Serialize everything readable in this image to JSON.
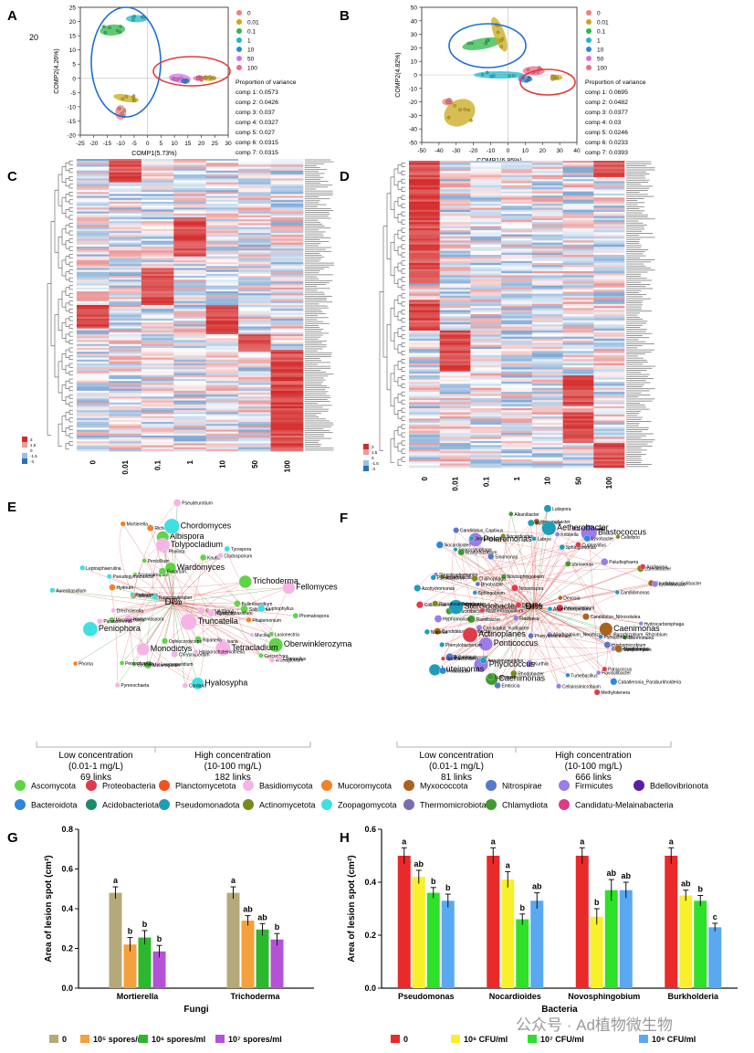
{
  "page_marker": "20",
  "watermark": "公众号 · Ad植物微生物",
  "panel_letters": [
    "A",
    "B",
    "C",
    "D",
    "E",
    "F",
    "G",
    "H"
  ],
  "legend_groups": [
    "0",
    "0.01",
    "0.1",
    "1",
    "10",
    "50",
    "100"
  ],
  "group_colors": [
    "#ef7f7f",
    "#c8a818",
    "#2db84a",
    "#20b7c8",
    "#2e86de",
    "#d872e0",
    "#f06a8a"
  ],
  "pca": [
    {
      "xlabel": "COMP1(5.73%)",
      "ylabel": "COMP2(4.26%)",
      "xticks": [
        "-25",
        "-20",
        "-15",
        "-10",
        "-5",
        "0",
        "5",
        "10",
        "15",
        "20",
        "25",
        "30"
      ],
      "yticks": [
        "-20",
        "-15",
        "-10",
        "-5",
        "0",
        "5",
        "10",
        "15",
        "20",
        "25"
      ],
      "variance_title": "Proportion of variance",
      "variance": [
        "comp 1: 0.0573",
        "comp 2: 0.0426",
        "comp 3: 0.037",
        "comp 4: 0.0327",
        "comp 5: 0.027",
        "comp 6: 0.0315",
        "comp 7: 0.0315"
      ]
    },
    {
      "xlabel": "COMP1(6.95%)",
      "ylabel": "COMP2(4.82%)",
      "xticks": [
        "-50",
        "-40",
        "-30",
        "-20",
        "-10",
        "0",
        "10",
        "20",
        "30",
        "40"
      ],
      "yticks": [
        "-50",
        "-40",
        "-30",
        "-20",
        "-10",
        "0",
        "10",
        "20",
        "30",
        "40",
        "50"
      ],
      "variance_title": "Proportion of variance",
      "variance": [
        "comp 1: 0.0695",
        "comp 2: 0.0482",
        "comp 3: 0.0377",
        "comp 4: 0.03",
        "comp 5: 0.0246",
        "comp 6: 0.0233",
        "comp 7: 0.0393"
      ]
    }
  ],
  "heatmap": {
    "columns": [
      "0",
      "0.01",
      "0.1",
      "1",
      "10",
      "50",
      "100"
    ],
    "scale": [
      "3",
      "1.5",
      "0",
      "-1.5",
      "-3"
    ],
    "color_high": "#d42a2a",
    "color_low": "#2a6fb8"
  },
  "network_E": {
    "taxa": [
      "Bulleribasidium",
      "Hydnum",
      "Saitozyma",
      "Anteaglonium",
      "Cephalotheca",
      "Cercophora",
      "Wardomyces",
      "Truncatella",
      "Peniophora",
      "Mucilago",
      "Cuphophyllus",
      "Lasionectria",
      "Scopulariopsis",
      "Aureobasidium",
      "Ilyonectria",
      "Hyalosypha",
      "Chrysosporium",
      "Leucosporidium",
      "Oberwinklerozyma",
      "Isaria",
      "Melanogaster",
      "Fellomyces",
      "Tetracladium",
      "Pseudeurotium",
      "Podospora",
      "Phialemonium",
      "Monodictys",
      "Sydowia",
      "Ripariella",
      "Tyrospora",
      "Phoma",
      "DI%",
      "Albispora",
      "Richonella",
      "Hanseniaspora",
      "Cordana",
      "Tolypocladium",
      "Trichoderma",
      "Cystofilobasidium",
      "Humicola",
      "Macroventuria",
      "Pholiota",
      "Coprinellus",
      "Fusarium",
      "Pyrenochaeta",
      "Knufia",
      "Cladosporium",
      "Mortierella",
      "Chordomyces",
      "Ophiocordyceps",
      "Paraboeremia",
      "Drechslerella",
      "Halokirschsteiniothelia",
      "Peniophorella",
      "Leptosphaerulina",
      "Ramicandelaber",
      "Penicillium",
      "Phomatospora",
      "Pseudogymnoascus"
    ],
    "low": {
      "title": "Low concentration",
      "range": "(0.01-1 mg/L)",
      "links": "69 links"
    },
    "high": {
      "title": "High concentration",
      "range": "(10-100 mg/L)",
      "links": "182 links"
    }
  },
  "network_F": {
    "taxa": [
      "Pelomicrobium",
      "Methylotenera",
      "Candidatus_Koribacter",
      "Lutispora",
      "Kurthia",
      "Edaphobacter",
      "Candidatus_Pedobacter",
      "Candidimonas",
      "Devosia",
      "Hymenobacter",
      "Candidatus_Nitrosotalea",
      "Tumebacillus",
      "Ornithinibacter",
      "Flavisolibacter",
      "Thermotalea",
      "Phycicoccus",
      "Nitrosospira",
      "Aquimonas",
      "Burkholderia",
      "Caballeronia_Paraburkholderia",
      "Anaerobacillus",
      "Sporocytophaga",
      "Brevundimonas",
      "Streptomyces",
      "Armatimonadetes",
      "Rhodobacter",
      "Collimonas",
      "Candidatus_Solibacter",
      "Allorhizobium_Neorhizobium_Pararhizobium_Rhizobium",
      "Bradyrhizobium",
      "Candidatus_Captivus",
      "Polaromonas",
      "DI%",
      "Phenylobacterium",
      "Caenimonas",
      "Variovorax",
      "Ramlibacter",
      "Cellulosimicrobium",
      "Niabella",
      "Undibacterium",
      "Hydrocarboniphaga",
      "Luteimonas",
      "Ponticoccus",
      "Blastococcus",
      "Perlucidibaca",
      "Novosphingobium",
      "Rubrobacter",
      "Stenotrophomonas",
      "Chitinophaga",
      "Steroidobacter",
      "Paracoccus",
      "Flavitalea",
      "Lysobacter",
      "Azohydromonas",
      "Aetherobacter",
      "Duganella",
      "Sphingomonas",
      "Nocardioides",
      "Jeotgalibacillus",
      "Noviherbaspirillum",
      "Actinoplanes",
      "Pseudoxanthomonas",
      "Lysinibacillus",
      "Bryobacter",
      "Pedobacter",
      "Emticicia",
      "Hyphomicrobium",
      "Caenimonas",
      "Lutimonas",
      "Cupriavidus",
      "Anaerobiospirillum",
      "Luteolibacter",
      "Alkanibacter",
      "Pseudomonas",
      "Labrys",
      "Paludisphaera",
      "Hyphomonas",
      "Phenylobacterium",
      "Kribbella",
      "Cellvibrio",
      "Sphingobium",
      "Algoriphagus",
      "Nocardioides",
      "Pseudolabrys",
      "Acidisoma",
      "Sinomonas"
    ],
    "low": {
      "title": "Low concentration",
      "range": "(0.01-1 mg/L)",
      "links": "81 links"
    },
    "high": {
      "title": "High concentration",
      "range": "(10-100 mg/L)",
      "links": "666 links"
    }
  },
  "phyla_legend": [
    {
      "name": "Ascomycota",
      "color": "#5fd447"
    },
    {
      "name": "Proteobacteria",
      "color": "#e03b4b"
    },
    {
      "name": "Planctomycetota",
      "color": "#f4511e"
    },
    {
      "name": "Basidiomycota",
      "color": "#f6b3e6"
    },
    {
      "name": "Mucoromycota",
      "color": "#f0822a"
    },
    {
      "name": "Myxococcota",
      "color": "#a8641e"
    },
    {
      "name": "Nitrospirae",
      "color": "#5878c8"
    },
    {
      "name": "Firmicutes",
      "color": "#9b7ce8"
    },
    {
      "name": "Bdellovibrionota",
      "color": "#5c1ea0"
    },
    {
      "name": "Bacteroidota",
      "color": "#2e86de"
    },
    {
      "name": "Acidobacteriota",
      "color": "#1a8a6a"
    },
    {
      "name": "Pseudomonadota",
      "color": "#1f9cb8"
    },
    {
      "name": "Actinomycetota",
      "color": "#7a8a1a"
    },
    {
      "name": "Zoopagomycota",
      "color": "#3ee0e0"
    },
    {
      "name": "Thermomicrobiota",
      "color": "#7a6cae"
    },
    {
      "name": "Chlamydiota",
      "color": "#3e9a2e"
    },
    {
      "name": "Candidatu-Melainabacteria",
      "color": "#e03a8a"
    }
  ],
  "chart_data": [
    {
      "type": "bar",
      "panel": "G",
      "title": "",
      "xlabel": "Fungi",
      "ylabel": "Area of lesion spot (cm²)",
      "ylim": [
        0,
        0.8
      ],
      "yticks": [
        "0.0",
        "0.2",
        "0.4",
        "0.6",
        "0.8"
      ],
      "categories": [
        "Mortierella",
        "Trichoderma"
      ],
      "series": [
        {
          "name": "0",
          "color": "#b5a97a",
          "values": [
            0.48,
            0.48
          ],
          "errors": [
            0.03,
            0.03
          ],
          "letters": [
            "a",
            "a"
          ]
        },
        {
          "name": "10⁵ spores/ml",
          "color": "#f4a03c",
          "values": [
            0.22,
            0.34
          ],
          "errors": [
            0.035,
            0.025
          ],
          "letters": [
            "b",
            "ab"
          ]
        },
        {
          "name": "10⁶ spores/ml",
          "color": "#2cb82c",
          "values": [
            0.255,
            0.295
          ],
          "errors": [
            0.035,
            0.03
          ],
          "letters": [
            "b",
            "ab"
          ]
        },
        {
          "name": "10⁷ spores/ml",
          "color": "#b452d6",
          "values": [
            0.185,
            0.245
          ],
          "errors": [
            0.03,
            0.03
          ],
          "letters": [
            "b",
            "b"
          ]
        }
      ]
    },
    {
      "type": "bar",
      "panel": "H",
      "title": "",
      "xlabel": "Bacteria",
      "ylabel": "Area of lesion spot (cm²)",
      "ylim": [
        0,
        0.6
      ],
      "yticks": [
        "0.0",
        "0.2",
        "0.4",
        "0.6"
      ],
      "categories": [
        "Pseudomonas",
        "Nocardioides",
        "Novosphingobium",
        "Burkholderia"
      ],
      "series": [
        {
          "name": "0",
          "color": "#e82a2a",
          "values": [
            0.5,
            0.5,
            0.5,
            0.5
          ],
          "errors": [
            0.03,
            0.03,
            0.03,
            0.03
          ],
          "letters": [
            "a",
            "a",
            "a",
            "a"
          ]
        },
        {
          "name": "10⁶ CFU/ml",
          "color": "#f8f02a",
          "values": [
            0.42,
            0.41,
            0.27,
            0.35
          ],
          "errors": [
            0.025,
            0.03,
            0.03,
            0.02
          ],
          "letters": [
            "ab",
            "a",
            "b",
            "ab"
          ]
        },
        {
          "name": "10⁷ CFU/ml",
          "color": "#2ee02a",
          "values": [
            0.36,
            0.26,
            0.37,
            0.33
          ],
          "errors": [
            0.02,
            0.02,
            0.04,
            0.02
          ],
          "letters": [
            "b",
            "b",
            "ab",
            "b"
          ]
        },
        {
          "name": "10⁸ CFU/ml",
          "color": "#5aa8f0",
          "values": [
            0.33,
            0.33,
            0.37,
            0.23
          ],
          "errors": [
            0.025,
            0.03,
            0.03,
            0.015
          ],
          "letters": [
            "b",
            "ab",
            "ab",
            "c"
          ]
        }
      ]
    }
  ]
}
